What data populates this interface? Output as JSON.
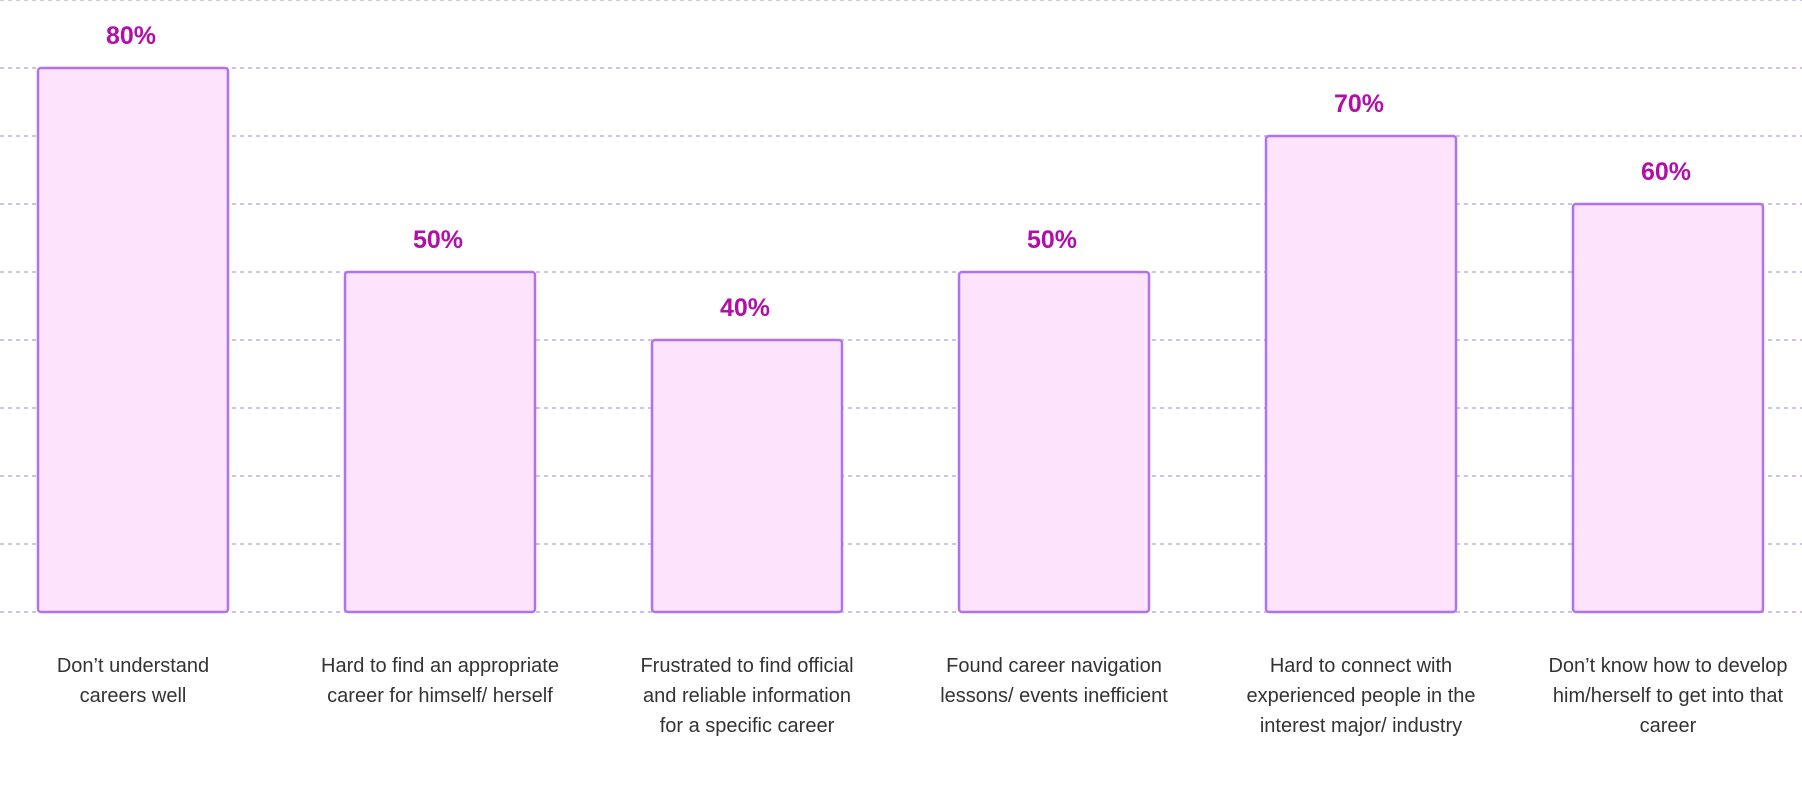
{
  "chart_data": {
    "type": "bar",
    "categories": [
      [
        "Don’t understand",
        "careers well"
      ],
      [
        "Hard to find an appropriate",
        "career for himself/ herself"
      ],
      [
        "Frustrated to find official",
        "and reliable information",
        "for a specific career"
      ],
      [
        "Found career navigation",
        "lessons/ events inefficient"
      ],
      [
        "Hard to connect with",
        "experienced people in the",
        "interest major/ industry"
      ],
      [
        "Don’t know how to develop",
        "him/herself to get into that",
        "career"
      ]
    ],
    "values": [
      80,
      50,
      40,
      50,
      70,
      60
    ],
    "value_labels": [
      "80%",
      "50%",
      "40%",
      "50%",
      "70%",
      "60%"
    ],
    "ylim": [
      0,
      90
    ],
    "grid": true,
    "colors": {
      "bar_fill": "#fde3fb",
      "bar_stroke": "#b073f0",
      "value_text": "#b30fa8",
      "grid": "#b39ae8",
      "category_text": "#333333"
    }
  }
}
